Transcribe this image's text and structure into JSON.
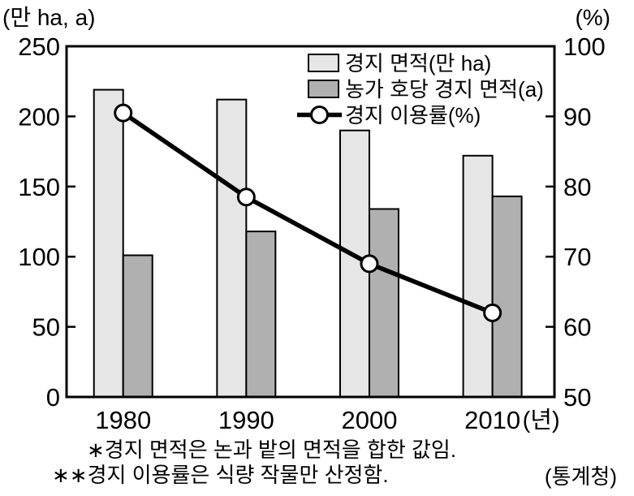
{
  "chart_data": {
    "type": "bar",
    "subtype": "combo-bar-line-dual-axis",
    "title": "",
    "categories": [
      "1980",
      "1990",
      "2000",
      "2010"
    ],
    "x_axis_suffix": "(년)",
    "left_axis": {
      "unit_label": "(만 ha, a)",
      "range": [
        0,
        250
      ],
      "ticks": [
        250,
        200,
        150,
        100,
        50,
        0
      ]
    },
    "right_axis": {
      "unit_label": "(%)",
      "range": [
        50,
        100
      ],
      "ticks": [
        100,
        90,
        80,
        70,
        60,
        50
      ]
    },
    "series": [
      {
        "name": "경지 면적(만 ha)",
        "kind": "bar",
        "axis": "left",
        "fill": "#e6e6e6",
        "values": [
          219,
          212,
          190,
          172
        ]
      },
      {
        "name": "농가 호당 경지 면적(a)",
        "kind": "bar",
        "axis": "left",
        "fill": "#b0b0b0",
        "values": [
          101,
          118,
          134,
          143
        ]
      },
      {
        "name": "경지 이용률(%)",
        "kind": "line",
        "axis": "right",
        "color": "#000000",
        "marker": "open-circle",
        "values": [
          90.5,
          78.5,
          69,
          62
        ]
      }
    ],
    "grid": false,
    "legend_position": "top-inside"
  },
  "footnotes": [
    "∗경지 면적은 논과 밭의 면적을 합한 값임.",
    "∗∗경지 이용률은 식량 작물만 산정함."
  ],
  "source": "(통계청)"
}
